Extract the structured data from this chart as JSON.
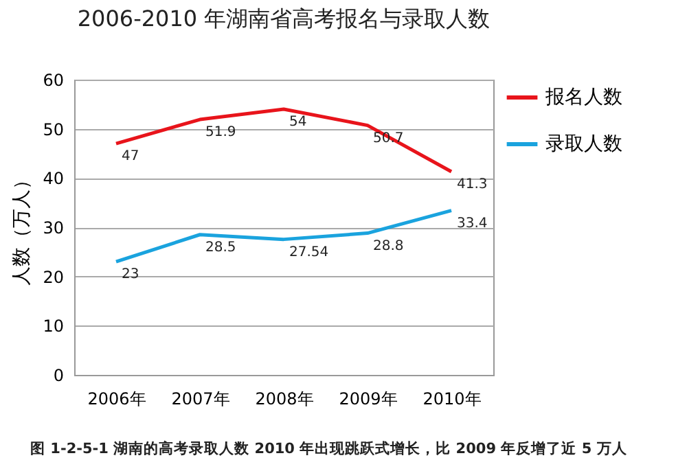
{
  "chart_data": {
    "type": "line",
    "title": "2006-2010 年湖南省高考报名与录取人数",
    "ylabel": "人数（万人）",
    "categories": [
      "2006年",
      "2007年",
      "2008年",
      "2009年",
      "2010年"
    ],
    "series": [
      {
        "name": "报名人数",
        "color": "#e8141b",
        "values": [
          47,
          51.9,
          54,
          50.7,
          41.3
        ]
      },
      {
        "name": "录取人数",
        "color": "#1aa3de",
        "values": [
          23,
          28.5,
          27.54,
          28.8,
          33.4
        ]
      }
    ],
    "ylim": [
      0,
      60
    ],
    "yticks": [
      0,
      10,
      20,
      30,
      40,
      50,
      60
    ],
    "grid": "y",
    "legend": "right",
    "data_labels": true,
    "marker": "none",
    "line_style": "solid",
    "annotations": [
      "图 1-2-5-1 湖南的高考录取人数 2010 年出现跳跃式增长，比 2009 年反增了近 5 万人"
    ]
  }
}
